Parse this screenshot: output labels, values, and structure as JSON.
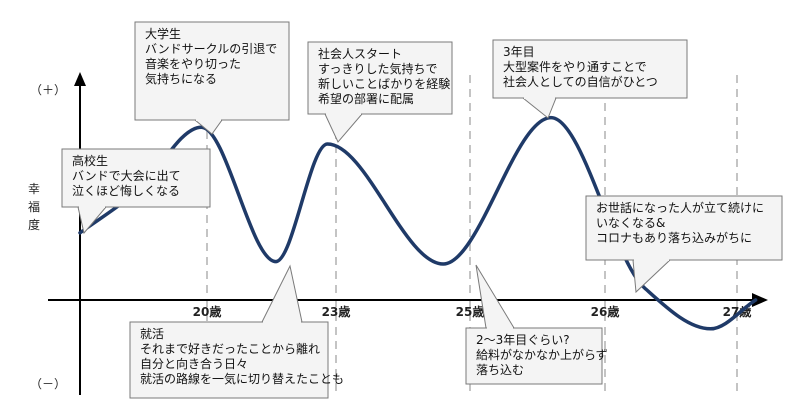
{
  "chart_data": {
    "type": "line",
    "ylabel": "幸福度",
    "y_top_label": "（＋）",
    "y_bottom_label": "（－）",
    "ylim": [
      -1,
      1
    ],
    "x_ticks": [
      {
        "label": "20歳",
        "age": 20
      },
      {
        "label": "23歳",
        "age": 23
      },
      {
        "label": "25歳",
        "age": 25
      },
      {
        "label": "26歳",
        "age": 26
      },
      {
        "label": "27歳",
        "age": 27
      }
    ],
    "series": [
      {
        "points": [
          {
            "age": 15.5,
            "y": 0.28
          },
          {
            "age": 17.5,
            "y": 0.45
          },
          {
            "age": 19.8,
            "y": 0.72
          },
          {
            "age": 21.6,
            "y": 0.16
          },
          {
            "age": 22.8,
            "y": 0.65
          },
          {
            "age": 24.6,
            "y": 0.15
          },
          {
            "age": 25.6,
            "y": 0.76
          },
          {
            "age": 26.3,
            "y": 0.05
          },
          {
            "age": 26.8,
            "y": -0.12
          },
          {
            "age": 27.6,
            "y": 0.0
          }
        ]
      }
    ],
    "annotations": [
      {
        "lines": [
          "大学生",
          "バンドサークルの引退で",
          "音楽をやり切った",
          "気持ちになる"
        ]
      },
      {
        "lines": [
          "社会人スタート",
          "すっきりした気持ちで",
          "新しいことばかりを経験",
          "希望の部署に配属"
        ]
      },
      {
        "lines": [
          "3年目",
          "大型案件をやり通すことで",
          "社会人としての自信がひとつ"
        ]
      },
      {
        "lines": [
          "高校生",
          "バンドで大会に出て",
          "泣くほど悔しくなる"
        ]
      },
      {
        "lines": [
          "お世話になった人が立て続けに",
          "いなくなる&",
          "コロナもあり落ち込みがちに"
        ]
      },
      {
        "lines": [
          "就活",
          "それまで好きだったことから離れ",
          "自分と向き合う日々",
          "就活の路線を一気に切り替えたことも"
        ]
      },
      {
        "lines": [
          "2〜3年目ぐらい?",
          "給料がなかなか上がらず",
          "落ち込む"
        ]
      }
    ]
  }
}
